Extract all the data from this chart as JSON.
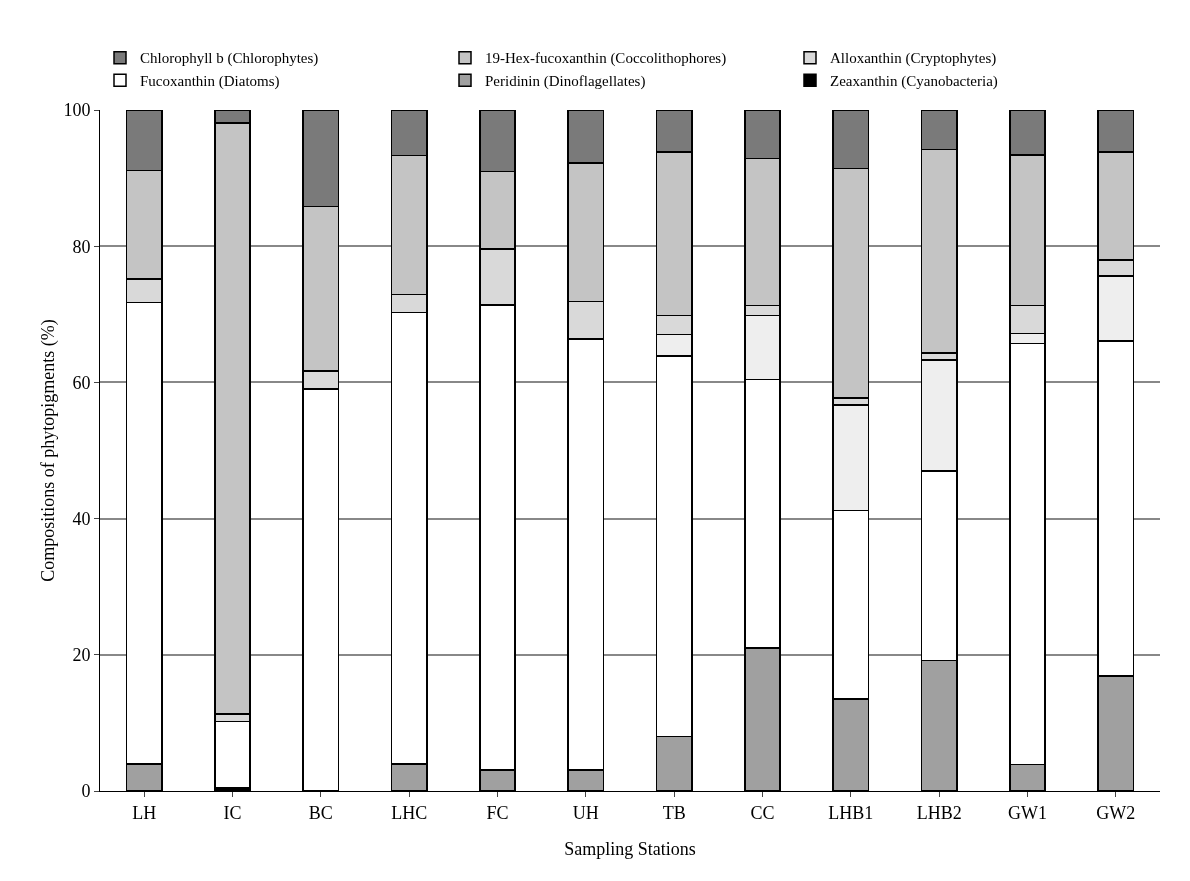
{
  "chart_data": {
    "type": "bar",
    "stacked": true,
    "xlabel": "Sampling Stations",
    "ylabel": "Compositions of phytopigments (%)",
    "categories": [
      "LH",
      "IC",
      "BC",
      "LHC",
      "FC",
      "UH",
      "TB",
      "CC",
      "LHB1",
      "LHB2",
      "GW1",
      "GW2"
    ],
    "series": [
      {
        "name": "Zeaxanthin (Cyanobacteria)",
        "color": "#000000",
        "values": [
          0,
          0.5,
          0,
          0,
          0,
          0,
          0,
          0,
          0,
          0,
          0,
          0
        ]
      },
      {
        "name": "Peridinin (Dinoflagellates)",
        "color": "#a0a0a0",
        "values": [
          4.0,
          0,
          0,
          4.0,
          3.1,
          3.1,
          8.0,
          21.0,
          13.5,
          19.2,
          3.9,
          16.9
        ]
      },
      {
        "name": "Fucoxanthin (Diatoms)",
        "color": "#ffffff",
        "values": [
          67.7,
          9.7,
          59.0,
          66.3,
          68.3,
          63.3,
          55.9,
          39.4,
          27.7,
          27.8,
          61.8,
          49.2
        ]
      },
      {
        "color": "#eeeeee",
        "values": [
          0,
          0,
          0,
          0,
          0,
          0,
          3.1,
          9.4,
          15.5,
          16.3,
          1.5,
          9.5
        ]
      },
      {
        "name": "Alloxanthin (Cryptophytes)",
        "color": "#d9d9d9",
        "values": [
          3.5,
          1.1,
          2.7,
          2.6,
          8.2,
          5.5,
          2.8,
          1.5,
          1.0,
          1.0,
          4.1,
          2.4
        ]
      },
      {
        "name": "19-Hex-fucoxanthin (Coccolithophores)",
        "color": "#c4c4c4",
        "values": [
          15.9,
          86.8,
          24.1,
          20.4,
          11.4,
          20.3,
          24.0,
          21.6,
          33.7,
          29.9,
          22.1,
          15.8
        ]
      },
      {
        "name": "Chlorophyll b (Chlorophytes)",
        "color": "#7a7a7a",
        "values": [
          8.9,
          1.9,
          14.2,
          6.7,
          9.0,
          7.8,
          6.2,
          7.1,
          8.6,
          5.8,
          6.6,
          6.2
        ]
      }
    ],
    "ylim": [
      0,
      100
    ],
    "yticks": [
      0,
      20,
      40,
      60,
      80,
      100
    ],
    "grid": "y",
    "legend": "top"
  }
}
